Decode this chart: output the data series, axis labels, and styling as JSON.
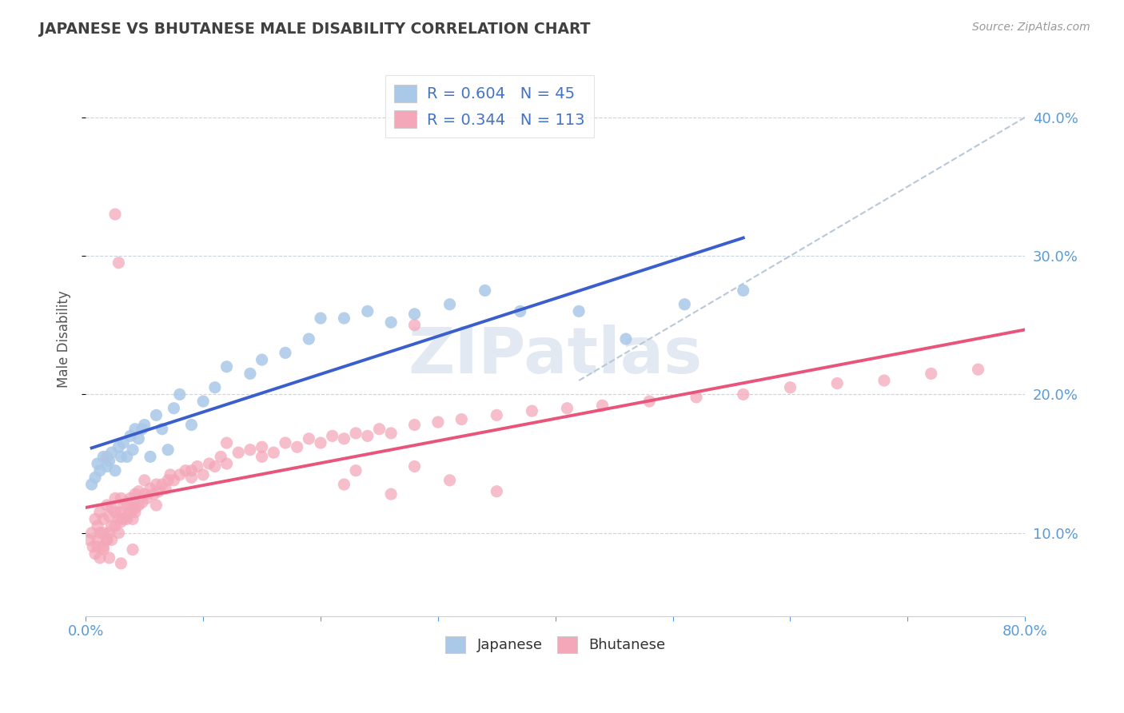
{
  "title": "JAPANESE VS BHUTANESE MALE DISABILITY CORRELATION CHART",
  "source_text": "Source: ZipAtlas.com",
  "ylabel": "Male Disability",
  "xlim": [
    0.0,
    0.8
  ],
  "ylim": [
    0.04,
    0.44
  ],
  "yticks": [
    0.1,
    0.2,
    0.3,
    0.4
  ],
  "ytick_labels": [
    "10.0%",
    "20.0%",
    "30.0%",
    "40.0%"
  ],
  "xticks": [
    0.0,
    0.1,
    0.2,
    0.3,
    0.4,
    0.5,
    0.6,
    0.7,
    0.8
  ],
  "japanese_color": "#aac8e8",
  "bhutanese_color": "#f4a7b9",
  "japanese_line_color": "#3a5fcd",
  "bhutanese_line_color": "#e8547a",
  "dashed_line_color": "#b8c8d8",
  "R_japanese": 0.604,
  "N_japanese": 45,
  "R_bhutanese": 0.344,
  "N_bhutanese": 113,
  "title_color": "#404040",
  "axis_color": "#5b9bd5",
  "legend_text_color": "#4472c4",
  "watermark": "ZIPatlas",
  "background_color": "#ffffff",
  "grid_color": "#c8d4e0",
  "japanese_scatter_x": [
    0.005,
    0.008,
    0.01,
    0.012,
    0.015,
    0.018,
    0.02,
    0.022,
    0.025,
    0.028,
    0.03,
    0.032,
    0.035,
    0.038,
    0.04,
    0.042,
    0.045,
    0.048,
    0.05,
    0.055,
    0.06,
    0.065,
    0.07,
    0.075,
    0.08,
    0.09,
    0.1,
    0.11,
    0.12,
    0.14,
    0.15,
    0.17,
    0.19,
    0.2,
    0.22,
    0.24,
    0.26,
    0.28,
    0.31,
    0.34,
    0.37,
    0.42,
    0.46,
    0.51,
    0.56
  ],
  "japanese_scatter_y": [
    0.135,
    0.14,
    0.15,
    0.145,
    0.155,
    0.148,
    0.152,
    0.158,
    0.145,
    0.162,
    0.155,
    0.165,
    0.155,
    0.17,
    0.16,
    0.175,
    0.168,
    0.175,
    0.178,
    0.155,
    0.185,
    0.175,
    0.16,
    0.19,
    0.2,
    0.178,
    0.195,
    0.205,
    0.22,
    0.215,
    0.225,
    0.23,
    0.24,
    0.255,
    0.255,
    0.26,
    0.252,
    0.258,
    0.265,
    0.275,
    0.26,
    0.26,
    0.24,
    0.265,
    0.275
  ],
  "bhutanese_scatter_x": [
    0.003,
    0.005,
    0.006,
    0.008,
    0.008,
    0.01,
    0.01,
    0.012,
    0.012,
    0.015,
    0.015,
    0.015,
    0.018,
    0.018,
    0.02,
    0.02,
    0.022,
    0.022,
    0.022,
    0.025,
    0.025,
    0.025,
    0.028,
    0.028,
    0.03,
    0.03,
    0.03,
    0.032,
    0.032,
    0.035,
    0.035,
    0.038,
    0.038,
    0.04,
    0.04,
    0.042,
    0.042,
    0.045,
    0.045,
    0.048,
    0.05,
    0.05,
    0.052,
    0.055,
    0.058,
    0.06,
    0.062,
    0.065,
    0.068,
    0.07,
    0.072,
    0.075,
    0.08,
    0.085,
    0.09,
    0.095,
    0.1,
    0.105,
    0.11,
    0.115,
    0.12,
    0.13,
    0.14,
    0.15,
    0.16,
    0.17,
    0.18,
    0.19,
    0.2,
    0.21,
    0.22,
    0.23,
    0.24,
    0.25,
    0.26,
    0.28,
    0.3,
    0.32,
    0.35,
    0.38,
    0.41,
    0.44,
    0.48,
    0.52,
    0.56,
    0.6,
    0.64,
    0.68,
    0.72,
    0.76,
    0.23,
    0.28,
    0.31,
    0.35,
    0.22,
    0.26,
    0.12,
    0.15,
    0.28,
    0.09,
    0.06,
    0.04,
    0.03,
    0.02,
    0.018,
    0.015,
    0.012,
    0.01,
    0.035,
    0.042,
    0.028,
    0.025,
    0.018
  ],
  "bhutanese_scatter_y": [
    0.095,
    0.1,
    0.09,
    0.085,
    0.11,
    0.095,
    0.105,
    0.1,
    0.115,
    0.09,
    0.1,
    0.11,
    0.095,
    0.12,
    0.1,
    0.112,
    0.105,
    0.118,
    0.095,
    0.105,
    0.115,
    0.125,
    0.1,
    0.11,
    0.108,
    0.115,
    0.125,
    0.11,
    0.12,
    0.112,
    0.122,
    0.115,
    0.125,
    0.11,
    0.118,
    0.115,
    0.128,
    0.12,
    0.13,
    0.122,
    0.128,
    0.138,
    0.125,
    0.132,
    0.128,
    0.135,
    0.13,
    0.135,
    0.132,
    0.138,
    0.142,
    0.138,
    0.142,
    0.145,
    0.14,
    0.148,
    0.142,
    0.15,
    0.148,
    0.155,
    0.15,
    0.158,
    0.16,
    0.162,
    0.158,
    0.165,
    0.162,
    0.168,
    0.165,
    0.17,
    0.168,
    0.172,
    0.17,
    0.175,
    0.172,
    0.178,
    0.18,
    0.182,
    0.185,
    0.188,
    0.19,
    0.192,
    0.195,
    0.198,
    0.2,
    0.205,
    0.208,
    0.21,
    0.215,
    0.218,
    0.145,
    0.148,
    0.138,
    0.13,
    0.135,
    0.128,
    0.165,
    0.155,
    0.25,
    0.145,
    0.12,
    0.088,
    0.078,
    0.082,
    0.095,
    0.088,
    0.082,
    0.09,
    0.11,
    0.118,
    0.295,
    0.33,
    0.155
  ],
  "dashed_line_x": [
    0.42,
    0.8
  ],
  "dashed_line_y": [
    0.21,
    0.4
  ]
}
